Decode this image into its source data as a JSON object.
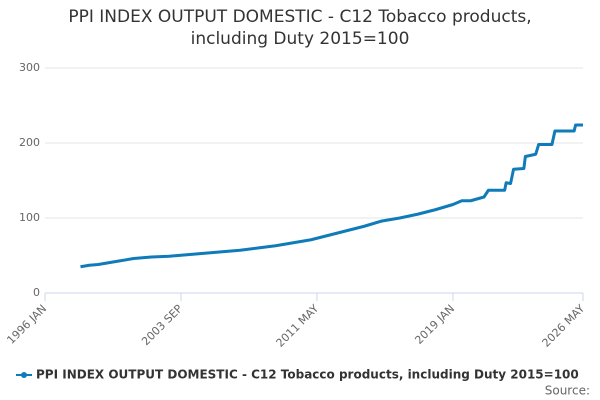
{
  "chart_data": {
    "type": "line",
    "title": "PPI INDEX OUTPUT DOMESTIC - C12 Tobacco products, including Duty 2015=100",
    "source": "Source:",
    "x": [
      "1998 JAN",
      "1998 JUL",
      "1999 JAN",
      "2000 JAN",
      "2001 JAN",
      "2002 JAN",
      "2003 JAN",
      "2004 JAN",
      "2005 JAN",
      "2006 JAN",
      "2007 JAN",
      "2008 JAN",
      "2009 JAN",
      "2010 JAN",
      "2011 JAN",
      "2012 JAN",
      "2013 JAN",
      "2014 JAN",
      "2015 JAN",
      "2016 JAN",
      "2017 JAN",
      "2018 JAN",
      "2019 JAN",
      "2019 JUL",
      "2020 JAN",
      "2020 OCT",
      "2021 JAN",
      "2021 DEC",
      "2022 JAN",
      "2022 APR",
      "2022 JUN",
      "2023 JAN",
      "2023 FEB",
      "2023 SEP",
      "2023 NOV",
      "2024 AUG",
      "2024 OCT",
      "2025 NOV",
      "2025 DEC",
      "2026 MAY"
    ],
    "series": [
      {
        "name": "PPI INDEX OUTPUT DOMESTIC - C12 Tobacco products, including Duty 2015=100",
        "color": "#0f7bb8",
        "values": [
          35,
          37,
          38,
          42,
          46,
          48,
          49,
          51,
          53,
          55,
          57,
          60,
          63,
          67,
          71,
          77,
          83,
          89,
          96,
          100,
          105,
          111,
          118,
          123,
          123,
          128,
          137,
          137,
          147,
          146,
          165,
          166,
          182,
          185,
          198,
          198,
          216,
          216,
          224,
          224
        ]
      }
    ],
    "xlim": [
      "1996 JAN",
      "2026 MAY"
    ],
    "xticks": [
      "1996 JAN",
      "2003 SEP",
      "2011 MAY",
      "2019 JAN",
      "2026 MAY"
    ],
    "ylim": [
      0,
      300
    ],
    "yticks": [
      0,
      100,
      200,
      300
    ],
    "grid": true
  }
}
